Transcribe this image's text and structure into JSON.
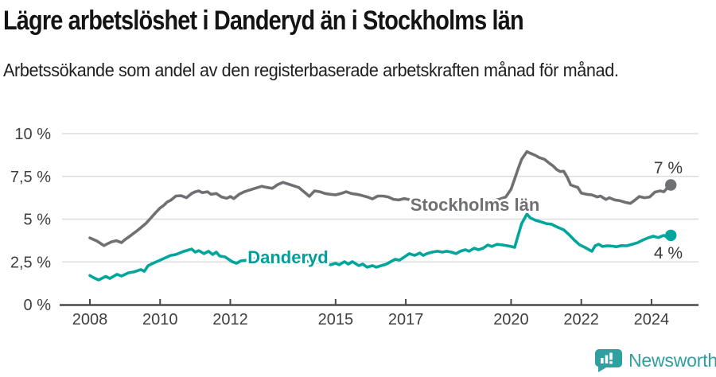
{
  "header": {
    "title": "Lägre arbetslöshet i Danderyd än i Stockholms län",
    "subtitle": "Arbetssökande som andel av den registerbaserade arbetskraften månad för månad."
  },
  "chart_data": {
    "type": "line",
    "title": "Lägre arbetslöshet i Danderyd än i Stockholms län",
    "subtitle": "Arbetssökande som andel av den registerbaserade arbetskraften månad för månad.",
    "x_unit": "year (decimal years, monthly data)",
    "y_unit": "percent of registered workforce",
    "ylim": [
      0,
      10
    ],
    "xlim": [
      2007.1,
      2025.3
    ],
    "grid": "horizontal",
    "legend_position": "inline-line-labels",
    "y_ticks": [
      {
        "value": 0,
        "label": "0 %"
      },
      {
        "value": 2.5,
        "label": "2,5 %"
      },
      {
        "value": 5,
        "label": "5 %"
      },
      {
        "value": 7.5,
        "label": "7,5 %"
      },
      {
        "value": 10,
        "label": "10 %"
      }
    ],
    "x_ticks": [
      {
        "value": 2008,
        "label": "2008"
      },
      {
        "value": 2010,
        "label": "2010"
      },
      {
        "value": 2012,
        "label": "2012"
      },
      {
        "value": 2015,
        "label": "2015"
      },
      {
        "value": 2017,
        "label": "2017"
      },
      {
        "value": 2020,
        "label": "2020"
      },
      {
        "value": 2022,
        "label": "2022"
      },
      {
        "value": 2024,
        "label": "2024"
      }
    ],
    "series": [
      {
        "name": "Stockholms län",
        "color": "#6f7073",
        "end_label": "7 %",
        "points": [
          [
            2008.0,
            3.9
          ],
          [
            2008.2,
            3.72
          ],
          [
            2008.4,
            3.45
          ],
          [
            2008.6,
            3.66
          ],
          [
            2008.75,
            3.74
          ],
          [
            2008.9,
            3.63
          ],
          [
            2009.0,
            3.8
          ],
          [
            2009.15,
            4.02
          ],
          [
            2009.3,
            4.25
          ],
          [
            2009.45,
            4.5
          ],
          [
            2009.6,
            4.76
          ],
          [
            2009.75,
            5.1
          ],
          [
            2009.87,
            5.37
          ],
          [
            2010.0,
            5.65
          ],
          [
            2010.1,
            5.8
          ],
          [
            2010.2,
            6.0
          ],
          [
            2010.3,
            6.1
          ],
          [
            2010.45,
            6.35
          ],
          [
            2010.6,
            6.37
          ],
          [
            2010.75,
            6.25
          ],
          [
            2010.9,
            6.5
          ],
          [
            2011.0,
            6.6
          ],
          [
            2011.1,
            6.65
          ],
          [
            2011.2,
            6.55
          ],
          [
            2011.35,
            6.6
          ],
          [
            2011.45,
            6.45
          ],
          [
            2011.6,
            6.5
          ],
          [
            2011.75,
            6.3
          ],
          [
            2011.9,
            6.22
          ],
          [
            2012.0,
            6.32
          ],
          [
            2012.1,
            6.2
          ],
          [
            2012.25,
            6.45
          ],
          [
            2012.4,
            6.6
          ],
          [
            2012.55,
            6.7
          ],
          [
            2012.7,
            6.8
          ],
          [
            2012.9,
            6.92
          ],
          [
            2013.05,
            6.85
          ],
          [
            2013.2,
            6.8
          ],
          [
            2013.35,
            7.02
          ],
          [
            2013.5,
            7.15
          ],
          [
            2013.65,
            7.05
          ],
          [
            2013.8,
            6.95
          ],
          [
            2013.95,
            6.85
          ],
          [
            2014.1,
            6.6
          ],
          [
            2014.25,
            6.33
          ],
          [
            2014.4,
            6.65
          ],
          [
            2014.55,
            6.6
          ],
          [
            2014.7,
            6.5
          ],
          [
            2014.85,
            6.45
          ],
          [
            2015.0,
            6.42
          ],
          [
            2015.15,
            6.5
          ],
          [
            2015.3,
            6.6
          ],
          [
            2015.45,
            6.5
          ],
          [
            2015.6,
            6.45
          ],
          [
            2015.75,
            6.38
          ],
          [
            2015.9,
            6.3
          ],
          [
            2016.05,
            6.18
          ],
          [
            2016.2,
            6.35
          ],
          [
            2016.35,
            6.35
          ],
          [
            2016.5,
            6.3
          ],
          [
            2016.65,
            6.16
          ],
          [
            2016.8,
            6.12
          ],
          [
            2016.95,
            6.2
          ],
          [
            2017.1,
            6.14
          ],
          [
            2017.3,
            6.08
          ],
          [
            2017.5,
            6.02
          ],
          [
            2017.75,
            5.95
          ],
          [
            2018.0,
            5.9
          ],
          [
            2018.25,
            5.86
          ],
          [
            2018.5,
            5.84
          ],
          [
            2018.75,
            5.88
          ],
          [
            2019.0,
            5.94
          ],
          [
            2019.25,
            6.0
          ],
          [
            2019.5,
            6.08
          ],
          [
            2019.7,
            6.18
          ],
          [
            2019.85,
            6.3
          ],
          [
            2020.0,
            6.75
          ],
          [
            2020.1,
            7.35
          ],
          [
            2020.2,
            7.95
          ],
          [
            2020.3,
            8.5
          ],
          [
            2020.45,
            8.95
          ],
          [
            2020.55,
            8.85
          ],
          [
            2020.7,
            8.72
          ],
          [
            2020.8,
            8.6
          ],
          [
            2020.95,
            8.5
          ],
          [
            2021.1,
            8.25
          ],
          [
            2021.2,
            8.1
          ],
          [
            2021.3,
            7.9
          ],
          [
            2021.4,
            7.78
          ],
          [
            2021.5,
            7.8
          ],
          [
            2021.6,
            7.45
          ],
          [
            2021.7,
            7.0
          ],
          [
            2021.8,
            6.92
          ],
          [
            2021.9,
            6.85
          ],
          [
            2022.0,
            6.52
          ],
          [
            2022.15,
            6.45
          ],
          [
            2022.3,
            6.42
          ],
          [
            2022.45,
            6.3
          ],
          [
            2022.55,
            6.35
          ],
          [
            2022.7,
            6.15
          ],
          [
            2022.8,
            6.25
          ],
          [
            2022.95,
            6.12
          ],
          [
            2023.1,
            6.08
          ],
          [
            2023.25,
            5.98
          ],
          [
            2023.4,
            5.92
          ],
          [
            2023.55,
            6.15
          ],
          [
            2023.65,
            6.32
          ],
          [
            2023.8,
            6.25
          ],
          [
            2023.95,
            6.3
          ],
          [
            2024.1,
            6.58
          ],
          [
            2024.25,
            6.65
          ],
          [
            2024.35,
            6.6
          ],
          [
            2024.45,
            6.82
          ],
          [
            2024.55,
            7.0
          ]
        ]
      },
      {
        "name": "Danderyd",
        "color": "#00a69c",
        "end_label": "4 %",
        "points": [
          [
            2008.0,
            1.7
          ],
          [
            2008.1,
            1.58
          ],
          [
            2008.25,
            1.44
          ],
          [
            2008.45,
            1.65
          ],
          [
            2008.57,
            1.53
          ],
          [
            2008.77,
            1.77
          ],
          [
            2008.9,
            1.67
          ],
          [
            2009.1,
            1.86
          ],
          [
            2009.25,
            1.91
          ],
          [
            2009.45,
            2.05
          ],
          [
            2009.55,
            1.95
          ],
          [
            2009.66,
            2.28
          ],
          [
            2009.8,
            2.42
          ],
          [
            2010.0,
            2.6
          ],
          [
            2010.15,
            2.74
          ],
          [
            2010.3,
            2.88
          ],
          [
            2010.45,
            2.93
          ],
          [
            2010.65,
            3.1
          ],
          [
            2010.9,
            3.25
          ],
          [
            2011.0,
            3.07
          ],
          [
            2011.1,
            3.16
          ],
          [
            2011.25,
            2.98
          ],
          [
            2011.38,
            3.12
          ],
          [
            2011.5,
            2.93
          ],
          [
            2011.6,
            3.07
          ],
          [
            2011.7,
            2.84
          ],
          [
            2011.85,
            2.79
          ],
          [
            2012.05,
            2.51
          ],
          [
            2012.18,
            2.42
          ],
          [
            2012.3,
            2.56
          ],
          [
            2012.48,
            2.6
          ],
          [
            2012.6,
            2.65
          ],
          [
            2012.75,
            2.7
          ],
          [
            2012.95,
            2.65
          ],
          [
            2013.2,
            2.6
          ],
          [
            2013.5,
            2.65
          ],
          [
            2013.8,
            2.6
          ],
          [
            2014.1,
            2.55
          ],
          [
            2014.4,
            2.5
          ],
          [
            2014.6,
            2.45
          ],
          [
            2014.75,
            2.42
          ],
          [
            2014.86,
            2.33
          ],
          [
            2015.0,
            2.42
          ],
          [
            2015.1,
            2.33
          ],
          [
            2015.25,
            2.51
          ],
          [
            2015.36,
            2.37
          ],
          [
            2015.48,
            2.51
          ],
          [
            2015.66,
            2.28
          ],
          [
            2015.77,
            2.37
          ],
          [
            2015.9,
            2.19
          ],
          [
            2016.05,
            2.28
          ],
          [
            2016.16,
            2.19
          ],
          [
            2016.3,
            2.28
          ],
          [
            2016.45,
            2.37
          ],
          [
            2016.57,
            2.51
          ],
          [
            2016.7,
            2.65
          ],
          [
            2016.82,
            2.6
          ],
          [
            2017.0,
            2.84
          ],
          [
            2017.1,
            2.98
          ],
          [
            2017.25,
            2.88
          ],
          [
            2017.4,
            3.02
          ],
          [
            2017.5,
            2.88
          ],
          [
            2017.6,
            2.98
          ],
          [
            2017.75,
            3.07
          ],
          [
            2017.9,
            3.12
          ],
          [
            2018.05,
            3.07
          ],
          [
            2018.16,
            3.12
          ],
          [
            2018.3,
            3.07
          ],
          [
            2018.43,
            2.98
          ],
          [
            2018.55,
            3.12
          ],
          [
            2018.7,
            3.21
          ],
          [
            2018.8,
            3.12
          ],
          [
            2018.95,
            3.3
          ],
          [
            2019.07,
            3.21
          ],
          [
            2019.2,
            3.3
          ],
          [
            2019.34,
            3.49
          ],
          [
            2019.45,
            3.4
          ],
          [
            2019.6,
            3.53
          ],
          [
            2019.75,
            3.49
          ],
          [
            2019.9,
            3.44
          ],
          [
            2020.0,
            3.4
          ],
          [
            2020.1,
            3.35
          ],
          [
            2020.2,
            4.05
          ],
          [
            2020.3,
            4.74
          ],
          [
            2020.45,
            5.3
          ],
          [
            2020.55,
            5.07
          ],
          [
            2020.7,
            4.93
          ],
          [
            2020.85,
            4.84
          ],
          [
            2021.0,
            4.74
          ],
          [
            2021.15,
            4.7
          ],
          [
            2021.3,
            4.55
          ],
          [
            2021.5,
            4.37
          ],
          [
            2021.65,
            4.1
          ],
          [
            2021.8,
            3.77
          ],
          [
            2021.95,
            3.5
          ],
          [
            2022.1,
            3.35
          ],
          [
            2022.3,
            3.12
          ],
          [
            2022.4,
            3.45
          ],
          [
            2022.5,
            3.53
          ],
          [
            2022.6,
            3.4
          ],
          [
            2022.75,
            3.44
          ],
          [
            2022.9,
            3.42
          ],
          [
            2023.0,
            3.38
          ],
          [
            2023.15,
            3.45
          ],
          [
            2023.3,
            3.44
          ],
          [
            2023.45,
            3.53
          ],
          [
            2023.6,
            3.62
          ],
          [
            2023.75,
            3.77
          ],
          [
            2023.9,
            3.9
          ],
          [
            2024.05,
            4.0
          ],
          [
            2024.2,
            3.92
          ],
          [
            2024.35,
            4.05
          ],
          [
            2024.45,
            3.95
          ],
          [
            2024.55,
            4.05
          ]
        ]
      }
    ]
  },
  "footer": {
    "brand": "Newsworthy",
    "brand_color": "#2f9fa0"
  }
}
